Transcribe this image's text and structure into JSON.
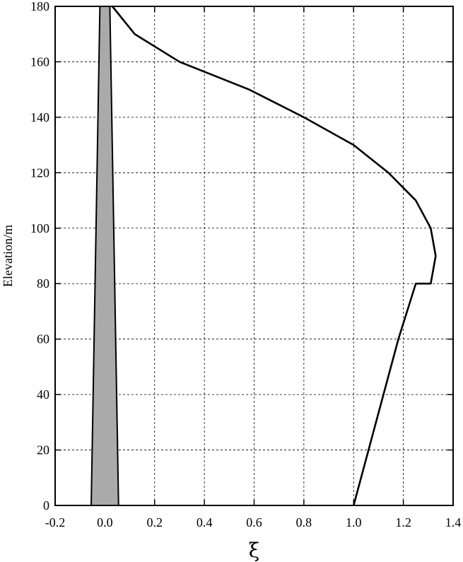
{
  "chart_data": {
    "type": "line",
    "title": "",
    "xlabel": "ξ",
    "ylabel": "Elevation/m",
    "xlim": [
      -0.2,
      1.4
    ],
    "ylim": [
      0,
      180
    ],
    "x_ticks": [
      -0.2,
      0.0,
      0.2,
      0.4,
      0.6,
      0.8,
      1.0,
      1.2,
      1.4
    ],
    "x_tick_labels": [
      "-0.2",
      "0.0",
      "0.2",
      "0.4",
      "0.6",
      "0.8",
      "1.0",
      "1.2",
      "1.4"
    ],
    "y_ticks": [
      0,
      20,
      40,
      60,
      80,
      100,
      120,
      140,
      160,
      180
    ],
    "y_tick_labels": [
      "0",
      "20",
      "40",
      "60",
      "80",
      "100",
      "120",
      "140",
      "160",
      "180"
    ],
    "grid": true,
    "series": [
      {
        "color": "#000000",
        "x": [
          1.0,
          1.06,
          1.12,
          1.18,
          1.25,
          1.31,
          1.33,
          1.31,
          1.25,
          1.14,
          1.0,
          0.8,
          0.58,
          0.3,
          0.12,
          0.03
        ],
        "y": [
          0,
          20,
          40,
          60,
          80,
          80,
          90,
          100,
          110,
          120,
          130,
          140,
          150,
          160,
          170,
          180
        ]
      }
    ],
    "shaded_region": {
      "color": "#aaaaaa",
      "polygon_x": [
        -0.055,
        0.055,
        0.02,
        -0.02
      ],
      "polygon_y": [
        0,
        0,
        180,
        180
      ]
    }
  }
}
